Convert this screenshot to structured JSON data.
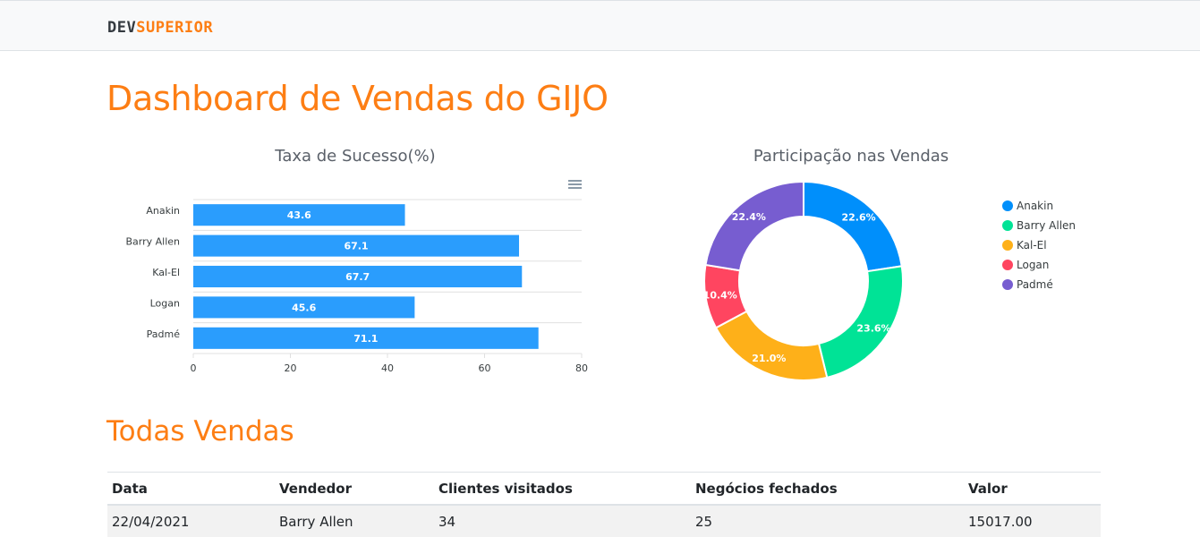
{
  "navbar": {
    "logo_part1": "DEV",
    "logo_part2": "SUPERIOR"
  },
  "page_title": "Dashboard de Vendas do GIJO",
  "section_title": "Todas Vendas",
  "colors": {
    "accent": "#fd7e14",
    "bar": "#2a9dfd"
  },
  "icons": {
    "chart_menu": "hamburger-menu-icon"
  },
  "chart_data": [
    {
      "type": "bar",
      "orientation": "horizontal",
      "title": "Taxa de Sucesso(%)",
      "categories": [
        "Anakin",
        "Barry Allen",
        "Kal-El",
        "Logan",
        "Padmé"
      ],
      "values": [
        43.6,
        67.1,
        67.7,
        45.6,
        71.1
      ],
      "xlim": [
        0,
        80
      ],
      "xticks": [
        0,
        20,
        40,
        60,
        80
      ],
      "grid": true,
      "color": "#2a9dfd"
    },
    {
      "type": "pie",
      "variant": "donut",
      "title": "Participação nas Vendas",
      "labels": [
        "Anakin",
        "Barry Allen",
        "Kal-El",
        "Logan",
        "Padmé"
      ],
      "values": [
        22.6,
        23.6,
        21.0,
        10.4,
        22.4
      ],
      "value_labels": [
        "22.6%",
        "23.6%",
        "21.0%",
        "10.4%",
        "22.4%"
      ],
      "colors": [
        "#008ffb",
        "#00e396",
        "#feb019",
        "#ff4560",
        "#775dd0"
      ],
      "legend": "right"
    }
  ],
  "table": {
    "headers": [
      "Data",
      "Vendedor",
      "Clientes visitados",
      "Negócios fechados",
      "Valor"
    ],
    "rows": [
      [
        "22/04/2021",
        "Barry Allen",
        "34",
        "25",
        "15017.00"
      ]
    ]
  }
}
